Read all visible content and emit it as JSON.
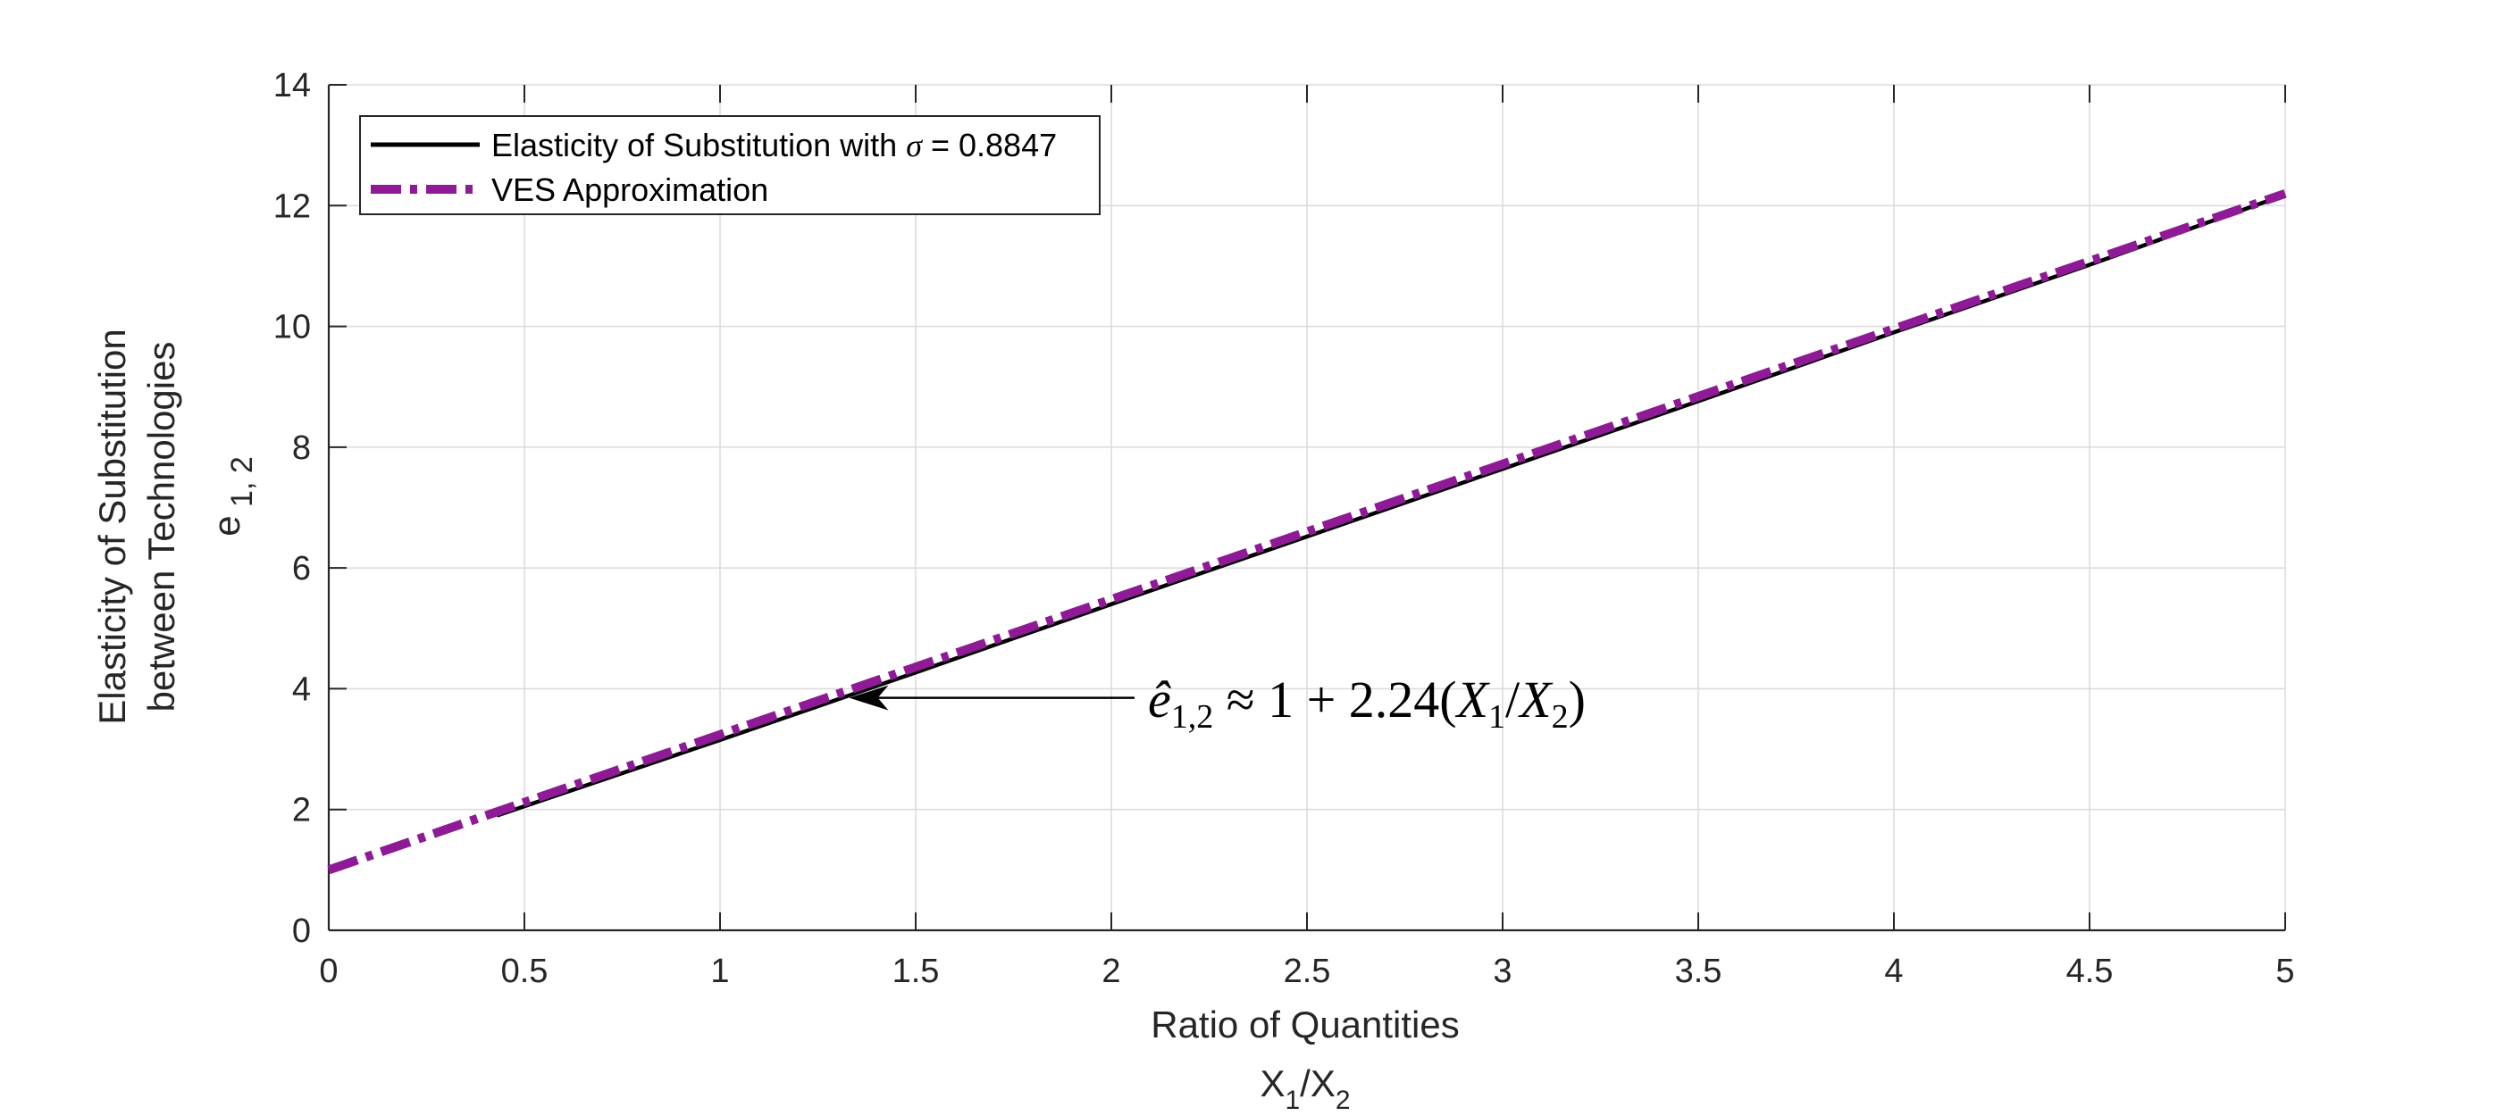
{
  "chart_data": {
    "type": "line",
    "xlabel": "Ratio of Quantities",
    "xlabel_sub": "X1/X2",
    "ylabel_line1": "Elasticity of Substitution",
    "ylabel_line2": "between Technologies",
    "ylabel_line3": "e1, 2",
    "xlim": [
      0,
      5
    ],
    "ylim": [
      0,
      14
    ],
    "xticks": [
      0,
      0.5,
      1,
      1.5,
      2,
      2.5,
      3,
      3.5,
      4,
      4.5,
      5
    ],
    "yticks": [
      0,
      2,
      4,
      6,
      8,
      10,
      12,
      14
    ],
    "xtick_labels": [
      "0",
      "0.5",
      "1",
      "1.5",
      "2",
      "2.5",
      "3",
      "3.5",
      "4",
      "4.5",
      "5"
    ],
    "ytick_labels": [
      "0",
      "2",
      "4",
      "6",
      "8",
      "10",
      "12",
      "14"
    ],
    "grid": true,
    "legend_position": "top-left",
    "series": [
      {
        "name": "Elasticity of Substitution with σ = 0.8847",
        "color": "#000000",
        "style": "solid",
        "x": [
          0.43,
          1.0,
          1.5,
          2.0,
          2.5,
          3.0,
          3.5,
          4.0,
          4.5,
          5.0
        ],
        "y": [
          1.9,
          3.15,
          4.27,
          5.4,
          6.52,
          7.64,
          8.76,
          9.9,
          11.02,
          12.18
        ]
      },
      {
        "name": "VES Approximation",
        "color": "#8e1a96",
        "style": "dashdot",
        "x": [
          0,
          5
        ],
        "y": [
          1.0,
          12.2
        ]
      }
    ],
    "annotation": {
      "text": "ê1,2 ≈ 1 + 2.24(X1/X2)",
      "arrow_target": {
        "x": 1.33,
        "y": 3.85
      }
    }
  }
}
